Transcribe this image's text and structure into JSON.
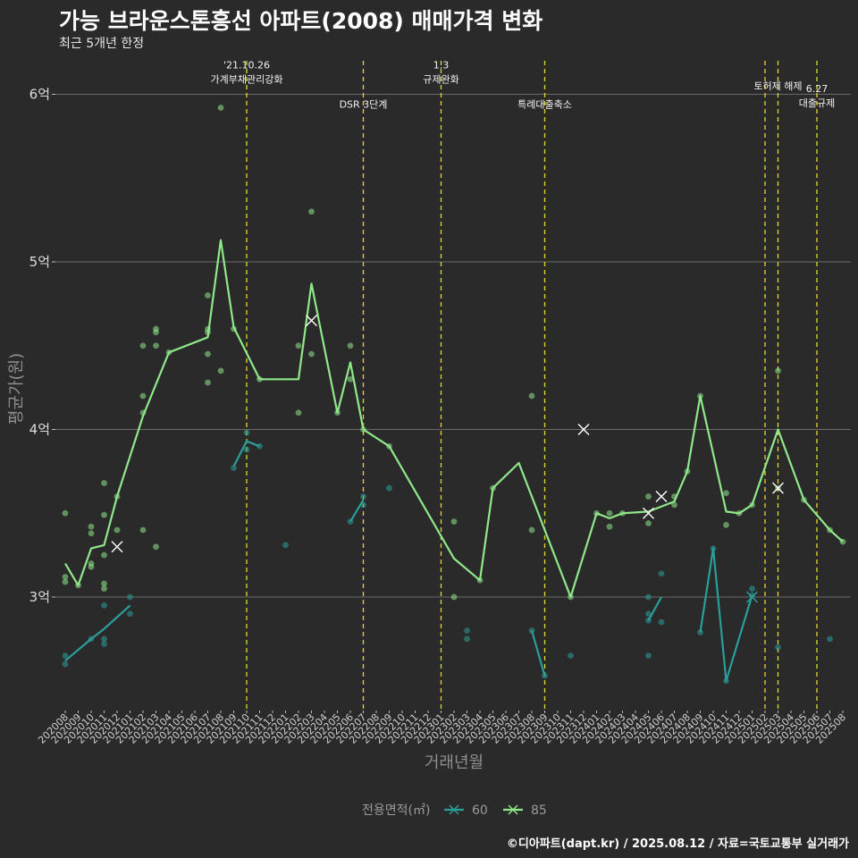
{
  "chart_data": {
    "type": "line",
    "title": "가능 브라운스톤흥선 아파트(2008) 매매가격 변화",
    "subtitle": "최근 5개년 한정",
    "xlabel": "거래년월",
    "ylabel": "평균가(원)",
    "caption": "©디아파트(dapt.kr) / 2025.08.12 / 자료=국토교통부 실거래가",
    "categories": [
      "202008",
      "202009",
      "202010",
      "202011",
      "202012",
      "202101",
      "202102",
      "202103",
      "202104",
      "202105",
      "202106",
      "202107",
      "202108",
      "202109",
      "202110",
      "202111",
      "202112",
      "202201",
      "202202",
      "202203",
      "202204",
      "202205",
      "202206",
      "202207",
      "202208",
      "202209",
      "202210",
      "202211",
      "202212",
      "202301",
      "202302",
      "202303",
      "202304",
      "202305",
      "202306",
      "202307",
      "202308",
      "202309",
      "202310",
      "202311",
      "202312",
      "202401",
      "202402",
      "202403",
      "202404",
      "202405",
      "202406",
      "202407",
      "202408",
      "202409",
      "202410",
      "202411",
      "202412",
      "202501",
      "202502",
      "202503",
      "202504",
      "202505",
      "202506",
      "202507",
      "202508"
    ],
    "y_ticks": [
      {
        "value": 3.0,
        "label": "3억"
      },
      {
        "value": 4.0,
        "label": "4억"
      },
      {
        "value": 5.0,
        "label": "5억"
      },
      {
        "value": 6.0,
        "label": "6억"
      }
    ],
    "ylim": [
      2.38,
      6.28
    ],
    "grid": true,
    "legend": {
      "title": "전용면적(㎡)",
      "position": "bottom"
    },
    "series": [
      {
        "name": "60",
        "color": "#2a9e9a",
        "line_segments": [
          [
            [
              0,
              2.62
            ],
            [
              2,
              2.75
            ],
            [
              3,
              2.81
            ],
            [
              5,
              2.95
            ]
          ],
          [
            [
              13,
              3.78
            ],
            [
              14,
              3.93
            ],
            [
              15,
              3.9
            ]
          ],
          [
            [
              22,
              3.45
            ],
            [
              23,
              3.58
            ]
          ],
          [
            [
              36,
              2.8
            ],
            [
              37,
              2.53
            ]
          ],
          [
            [
              45,
              2.86
            ],
            [
              46,
              3.0
            ]
          ],
          [
            [
              49,
              2.79
            ],
            [
              50,
              3.29
            ],
            [
              51,
              2.5
            ],
            [
              53,
              3.01
            ]
          ]
        ],
        "points": [
          [
            0,
            2.65
          ],
          [
            0,
            2.6
          ],
          [
            2,
            2.75
          ],
          [
            3,
            2.95
          ],
          [
            3,
            2.75
          ],
          [
            3,
            2.72
          ],
          [
            5,
            3.0
          ],
          [
            5,
            2.9
          ],
          [
            13,
            3.77
          ],
          [
            14,
            3.98
          ],
          [
            14,
            3.88
          ],
          [
            15,
            3.9
          ],
          [
            17,
            3.31
          ],
          [
            22,
            3.45
          ],
          [
            23,
            3.6
          ],
          [
            23,
            3.55
          ],
          [
            25,
            3.65
          ],
          [
            31,
            2.8
          ],
          [
            31,
            2.75
          ],
          [
            36,
            2.8
          ],
          [
            37,
            2.53
          ],
          [
            39,
            2.65
          ],
          [
            45,
            3.0
          ],
          [
            45,
            2.9
          ],
          [
            45,
            2.86
          ],
          [
            45,
            2.65
          ],
          [
            46,
            3.14
          ],
          [
            46,
            2.85
          ],
          [
            49,
            2.79
          ],
          [
            50,
            3.29
          ],
          [
            51,
            2.5
          ],
          [
            53,
            3.05
          ],
          [
            53,
            3.01
          ],
          [
            55,
            2.7
          ],
          [
            59,
            2.75
          ]
        ],
        "x_markers": [
          [
            53,
            3.0
          ]
        ]
      },
      {
        "name": "85",
        "color": "#90e88a",
        "line": [
          [
            0,
            3.2
          ],
          [
            1,
            3.07
          ],
          [
            2,
            3.29
          ],
          [
            3,
            3.31
          ],
          [
            4,
            3.6
          ],
          [
            6,
            4.08
          ],
          [
            8,
            4.46
          ],
          [
            11,
            4.55
          ],
          [
            12,
            5.13
          ],
          [
            13,
            4.61
          ],
          [
            15,
            4.3
          ],
          [
            18,
            4.3
          ],
          [
            19,
            4.87
          ],
          [
            21,
            4.1
          ],
          [
            22,
            4.4
          ],
          [
            23,
            4.0
          ],
          [
            25,
            3.9
          ],
          [
            30,
            3.23
          ],
          [
            32,
            3.1
          ],
          [
            33,
            3.65
          ],
          [
            35,
            3.8
          ],
          [
            39,
            3.0
          ],
          [
            41,
            3.5
          ],
          [
            42,
            3.47
          ],
          [
            43,
            3.5
          ],
          [
            45,
            3.51
          ],
          [
            47,
            3.57
          ],
          [
            48,
            3.75
          ],
          [
            49,
            4.2
          ],
          [
            51,
            3.51
          ],
          [
            52,
            3.5
          ],
          [
            53,
            3.55
          ],
          [
            55,
            4.0
          ],
          [
            57,
            3.58
          ],
          [
            59,
            3.4
          ],
          [
            60,
            3.33
          ]
        ],
        "points": [
          [
            0,
            3.5
          ],
          [
            0,
            3.12
          ],
          [
            0,
            3.09
          ],
          [
            1,
            3.07
          ],
          [
            2,
            3.42
          ],
          [
            2,
            3.38
          ],
          [
            2,
            3.2
          ],
          [
            2,
            3.18
          ],
          [
            3,
            3.68
          ],
          [
            3,
            3.49
          ],
          [
            3,
            3.25
          ],
          [
            3,
            3.08
          ],
          [
            3,
            3.05
          ],
          [
            4,
            3.6
          ],
          [
            4,
            3.4
          ],
          [
            6,
            4.5
          ],
          [
            6,
            4.2
          ],
          [
            6,
            4.1
          ],
          [
            6,
            3.4
          ],
          [
            7,
            4.6
          ],
          [
            7,
            4.58
          ],
          [
            7,
            4.5
          ],
          [
            7,
            3.3
          ],
          [
            8,
            4.46
          ],
          [
            11,
            4.8
          ],
          [
            11,
            4.6
          ],
          [
            11,
            4.58
          ],
          [
            11,
            4.45
          ],
          [
            11,
            4.28
          ],
          [
            12,
            5.92
          ],
          [
            12,
            4.35
          ],
          [
            13,
            4.6
          ],
          [
            15,
            4.3
          ],
          [
            18,
            4.5
          ],
          [
            18,
            4.1
          ],
          [
            19,
            5.3
          ],
          [
            19,
            4.45
          ],
          [
            21,
            4.1
          ],
          [
            22,
            4.5
          ],
          [
            22,
            4.3
          ],
          [
            23,
            4.0
          ],
          [
            25,
            3.9
          ],
          [
            30,
            3.45
          ],
          [
            30,
            3.0
          ],
          [
            32,
            3.1
          ],
          [
            33,
            3.65
          ],
          [
            36,
            4.2
          ],
          [
            36,
            3.4
          ],
          [
            39,
            3.0
          ],
          [
            41,
            3.5
          ],
          [
            42,
            3.5
          ],
          [
            42,
            3.42
          ],
          [
            43,
            3.5
          ],
          [
            45,
            3.6
          ],
          [
            45,
            3.44
          ],
          [
            47,
            3.6
          ],
          [
            47,
            3.55
          ],
          [
            48,
            3.75
          ],
          [
            49,
            4.2
          ],
          [
            51,
            3.62
          ],
          [
            51,
            3.43
          ],
          [
            52,
            3.5
          ],
          [
            53,
            3.55
          ],
          [
            55,
            4.35
          ],
          [
            55,
            3.65
          ],
          [
            57,
            3.58
          ],
          [
            59,
            3.4
          ],
          [
            60,
            3.33
          ]
        ],
        "x_markers": [
          [
            4,
            3.3
          ],
          [
            19,
            4.65
          ],
          [
            40,
            4.0
          ],
          [
            45,
            3.5
          ],
          [
            46,
            3.6
          ],
          [
            55,
            3.65
          ]
        ]
      }
    ],
    "events": [
      {
        "x": 14.0,
        "label": "'21.10.26\n가계부채관리강화",
        "label_y": 6.08
      },
      {
        "x": 23.0,
        "label": "DSR 3단계",
        "label_y": 5.92
      },
      {
        "x": 29.0,
        "label": "1.3\n규제완화",
        "label_y": 6.08
      },
      {
        "x": 37.0,
        "label": "특례대출축소",
        "label_y": 5.92
      },
      {
        "x": 54.0,
        "label": "",
        "label_y": 6.05
      },
      {
        "x": 55.0,
        "label": "토허제 해제",
        "label_y": 6.03
      },
      {
        "x": 58.0,
        "label": "6.27\n대출규제",
        "label_y": 5.94
      }
    ]
  }
}
